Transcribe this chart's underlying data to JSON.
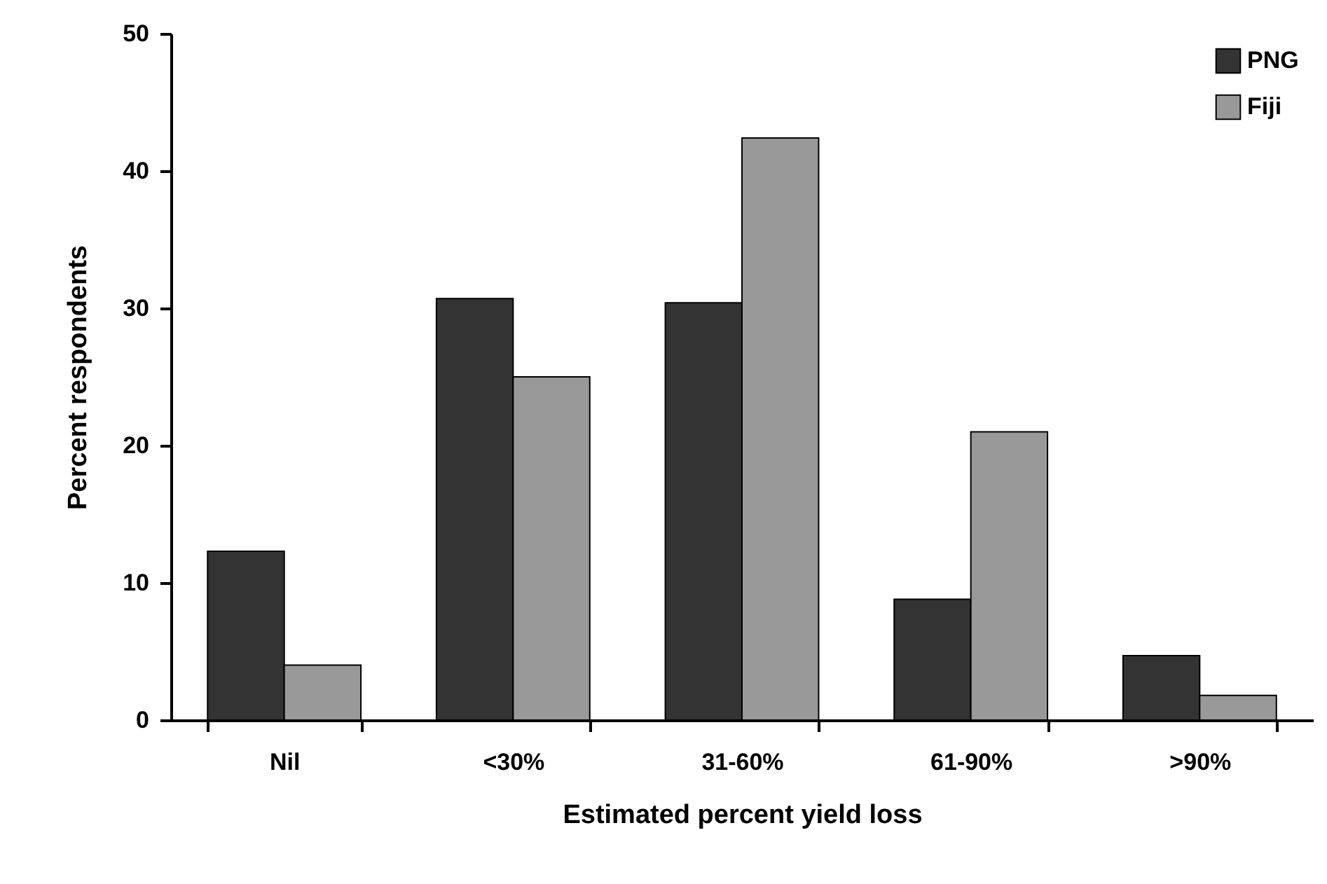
{
  "chart_data": {
    "type": "bar",
    "xlabel": "Estimated percent yield loss",
    "ylabel": "Percent respondents",
    "categories": [
      "Nil",
      "<30%",
      "31-60%",
      "61-90%",
      ">90%"
    ],
    "series": [
      {
        "name": "PNG",
        "color": "#333333",
        "values": [
          12.3,
          30.7,
          30.4,
          8.8,
          4.7
        ]
      },
      {
        "name": "Fiji",
        "color": "#999999",
        "values": [
          4,
          25,
          42.4,
          21,
          1.8
        ]
      }
    ],
    "ylim": [
      0,
      50
    ],
    "yticks": [
      0,
      10,
      20,
      30,
      40,
      50
    ],
    "grid": false,
    "legend": "top right"
  }
}
